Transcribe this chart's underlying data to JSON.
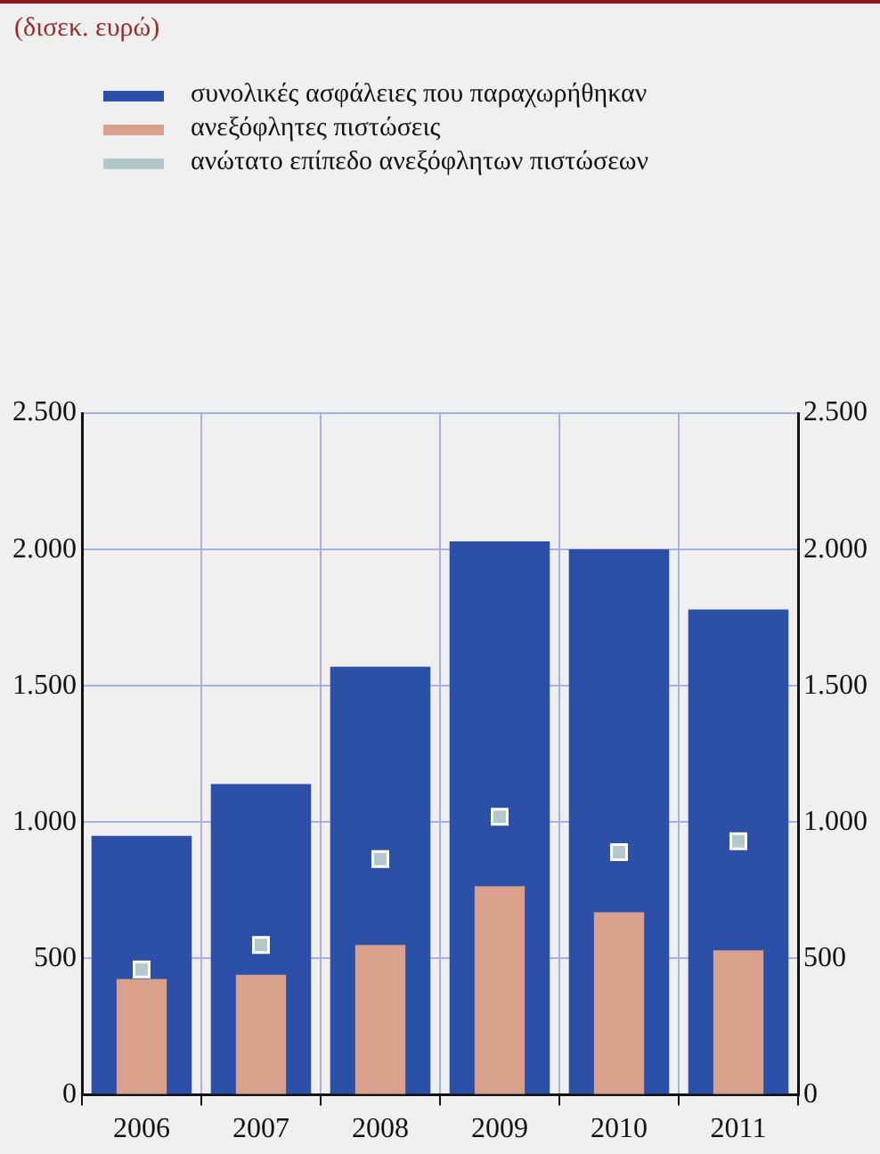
{
  "chart_data": {
    "type": "bar",
    "title": "(δισεκ. ευρώ)",
    "categories": [
      "2006",
      "2007",
      "2008",
      "2009",
      "2010",
      "2011"
    ],
    "series": [
      {
        "name": "συνολικές ασφάλειες που παραχωρήθηκαν",
        "color": "#2c4fa8",
        "values": [
          950,
          1140,
          1570,
          2030,
          2000,
          1780
        ]
      },
      {
        "name": "ανεξόφλητες πιστώσεις",
        "color": "#d9a08c",
        "values": [
          425,
          440,
          550,
          765,
          670,
          530
        ]
      },
      {
        "name": "ανώτατο επίπεδο ανεξόφλητων πιστώσεων",
        "type": "scatter",
        "color": "#b4c8cc",
        "values": [
          460,
          550,
          865,
          1020,
          890,
          930
        ]
      }
    ],
    "ylim": [
      0,
      2500
    ],
    "yticks": [
      0,
      500,
      {
        "value": 1000,
        "label": "1.000"
      },
      {
        "value": 1500,
        "label": "1.500"
      },
      {
        "value": 2000,
        "label": "2.000"
      },
      {
        "value": 2500,
        "label": "2.500"
      }
    ],
    "y2lim": [
      0,
      2500
    ],
    "y2ticks": [
      0,
      500,
      {
        "value": 1000,
        "label": "1.000"
      },
      {
        "value": 1500,
        "label": "1.500"
      },
      {
        "value": 2000,
        "label": "2.000"
      },
      {
        "value": 2500,
        "label": "2.500"
      }
    ],
    "grid": true,
    "legend": "top",
    "marker": "square"
  }
}
